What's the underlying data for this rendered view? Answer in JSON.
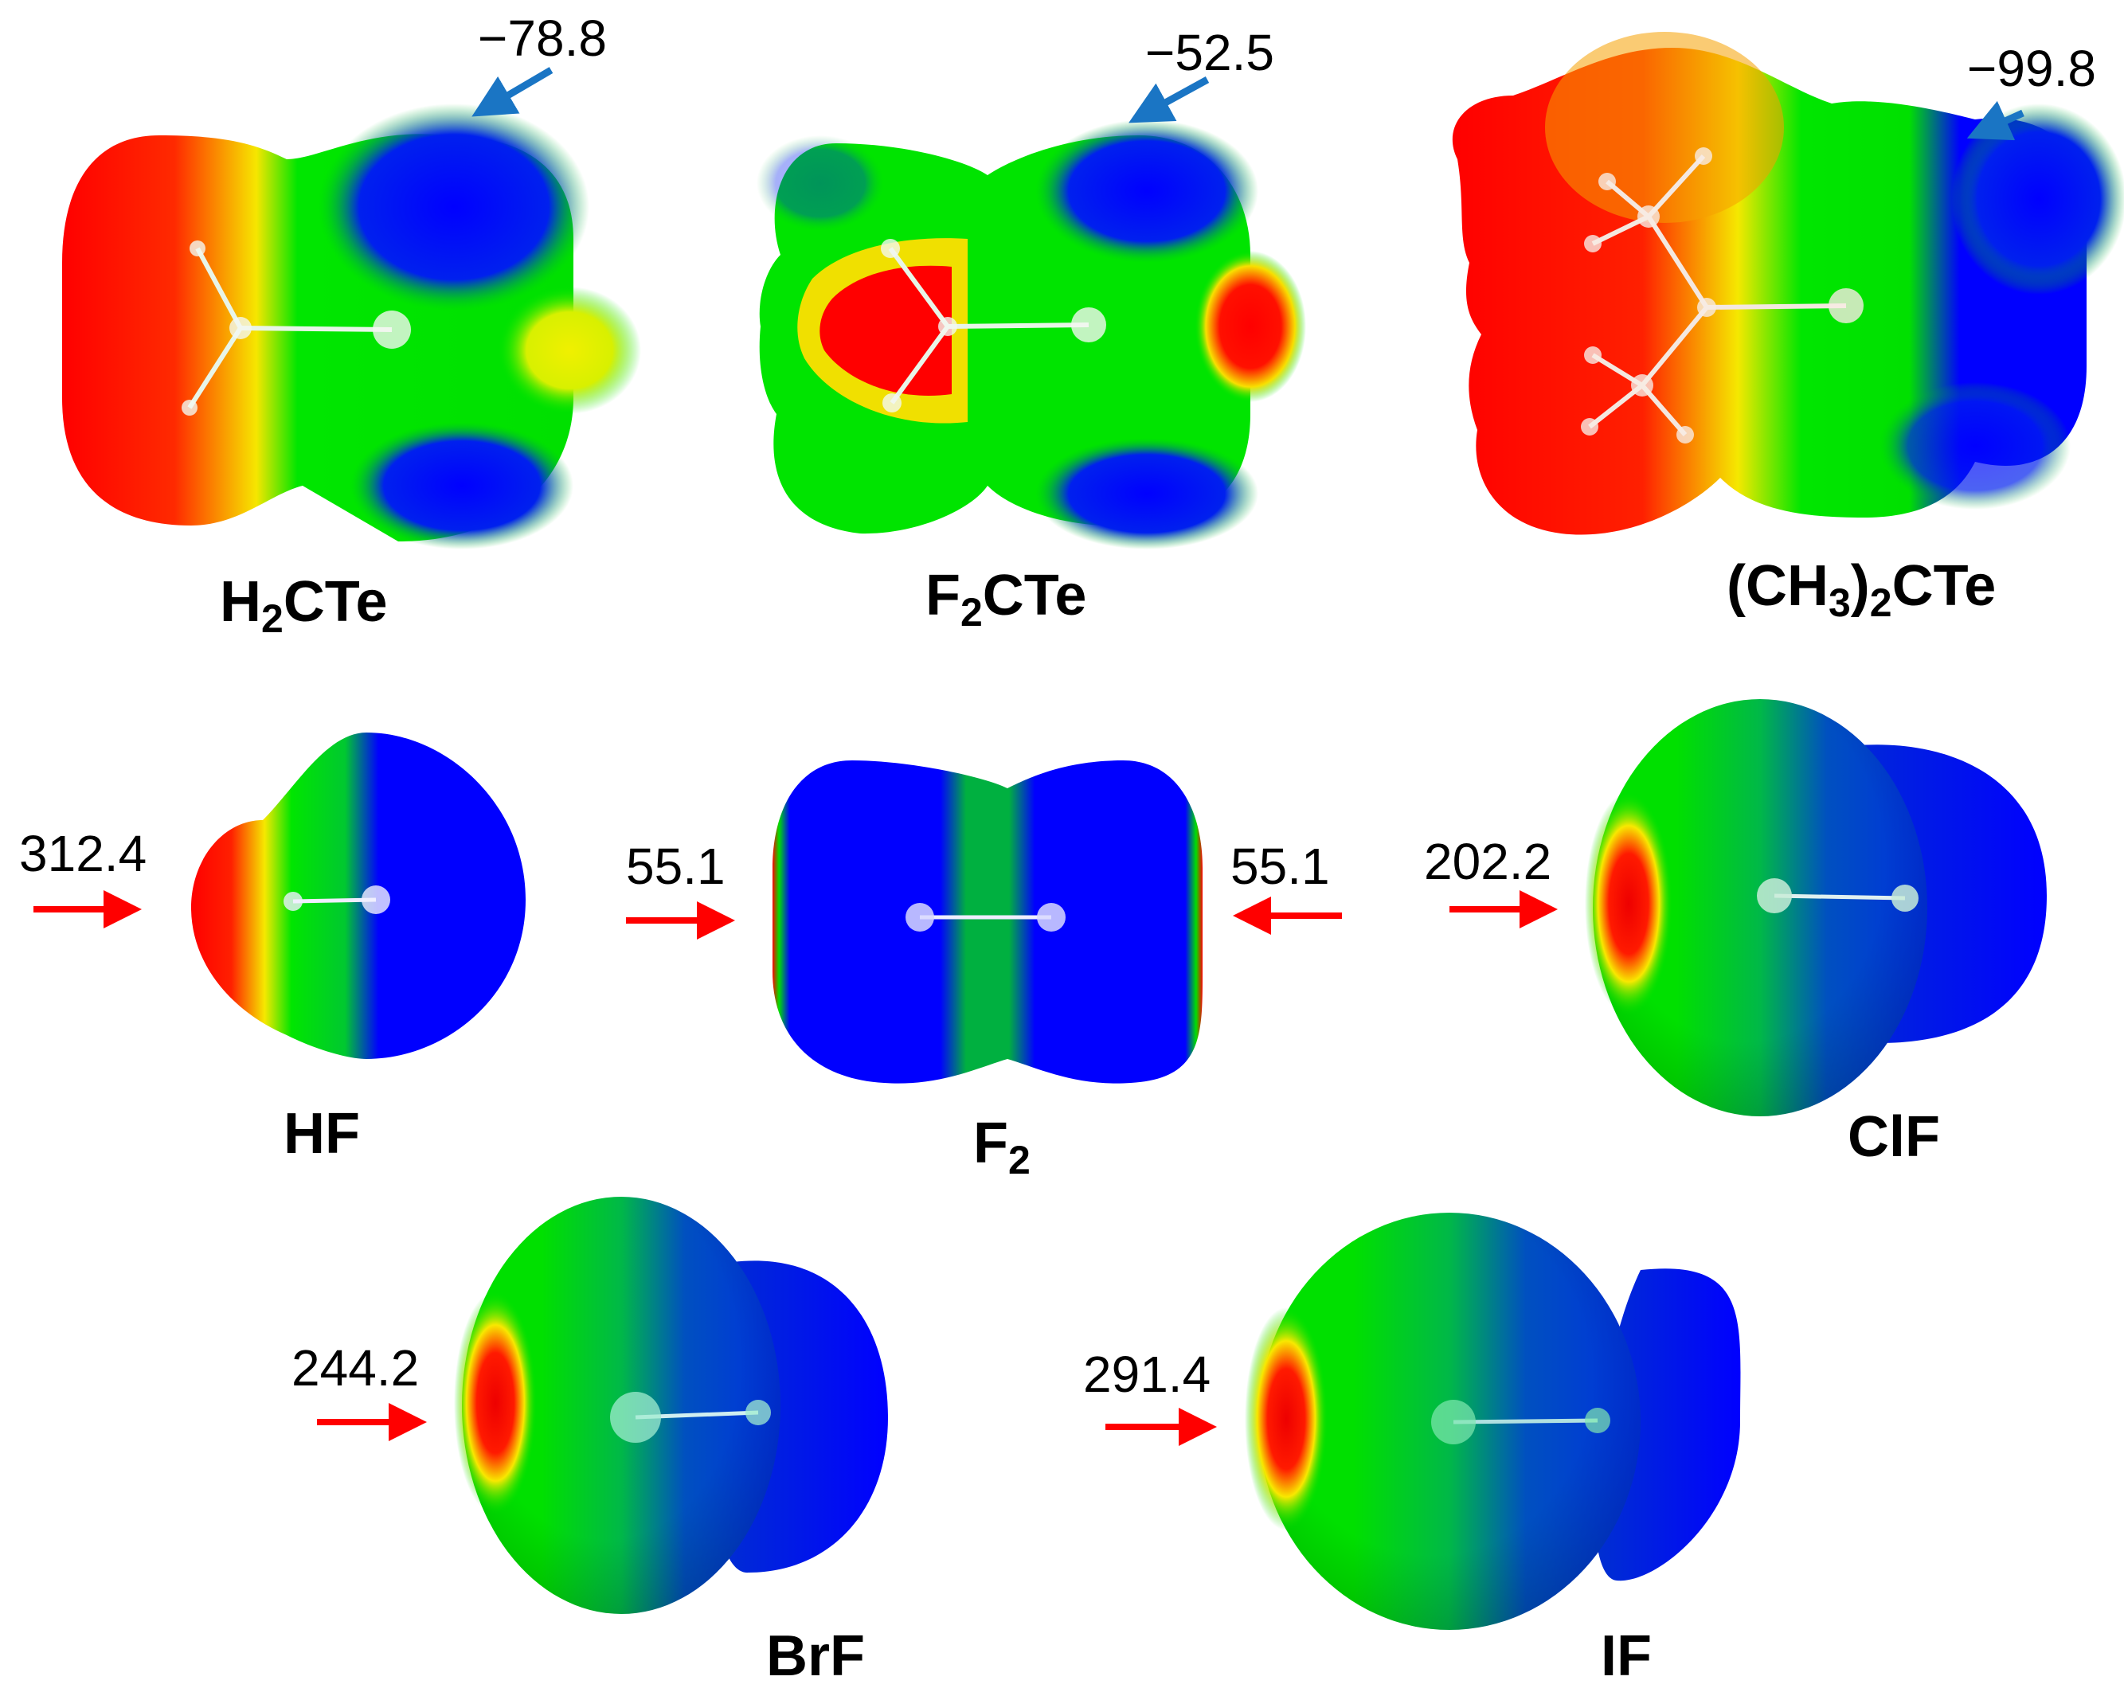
{
  "colors": {
    "red": "#ff0000",
    "yellow": "#f5f500",
    "green": "#00e600",
    "blue": "#0000ff",
    "arrow_negative": "#1a75c4",
    "arrow_positive": "#ff0000"
  },
  "molecules": [
    {
      "key": "h2cte",
      "name_main": "H",
      "name_sub": "2",
      "name_rest": "CTe",
      "values": [
        "−78.8"
      ]
    },
    {
      "key": "f2cte",
      "name_main": "F",
      "name_sub": "2",
      "name_rest": "CTe",
      "values": [
        "−52.5"
      ]
    },
    {
      "key": "me2cte",
      "name_main": "(CH",
      "name_sub": "3",
      "name_mid": ")",
      "name_sub2": "2",
      "name_rest": "CTe",
      "values": [
        "−99.8"
      ]
    },
    {
      "key": "hf",
      "name_main": "HF",
      "values": [
        "312.4"
      ]
    },
    {
      "key": "f2",
      "name_main": "F",
      "name_sub": "2",
      "values": [
        "55.1",
        "55.1"
      ]
    },
    {
      "key": "clf",
      "name_main": "ClF",
      "values": [
        "202.2"
      ]
    },
    {
      "key": "brf",
      "name_main": "BrF",
      "values": [
        "244.2"
      ]
    },
    {
      "key": "if",
      "name_main": "IF",
      "values": [
        "291.4"
      ]
    }
  ]
}
